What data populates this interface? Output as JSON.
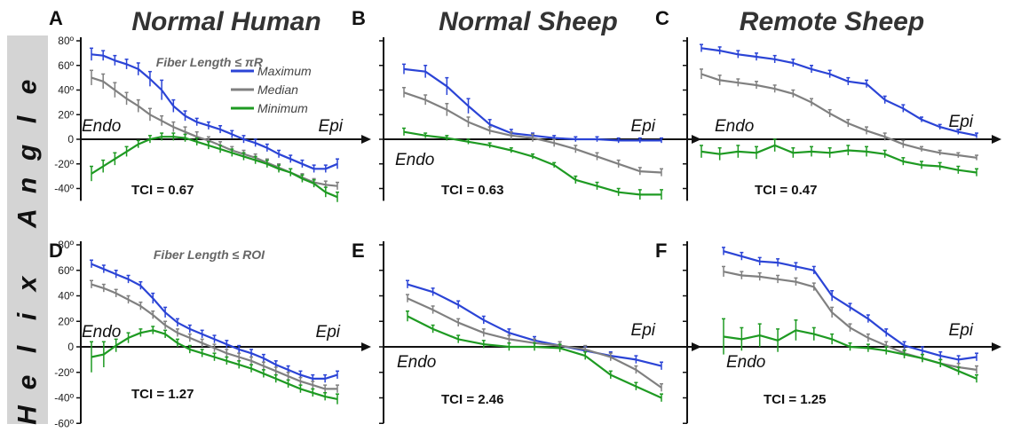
{
  "figure": {
    "column_titles": [
      "Normal Human",
      "Normal Sheep",
      "Remote Sheep"
    ],
    "side_label_letters": [
      "H",
      "e",
      "l",
      "i",
      "x",
      " ",
      "A",
      "n",
      "g",
      "l",
      "e"
    ],
    "fiber_notes": [
      "Fiber Length ≤ πR",
      "Fiber Length ≤ ROI"
    ],
    "endo_label": "Endo",
    "epi_label": "Epi",
    "y_ticks_top": [
      "80º",
      "60º",
      "40º",
      "20º",
      "0",
      "-20º",
      "-40º"
    ],
    "y_ticks_bottom": [
      "80º",
      "60º",
      "40º",
      "20º",
      "0",
      "-20º",
      "-40º",
      "-60º"
    ],
    "legend": [
      {
        "name": "Maximum",
        "color": "#2b44d6"
      },
      {
        "name": "Median",
        "color": "#808080"
      },
      {
        "name": "Minimum",
        "color": "#1e9a22"
      }
    ]
  },
  "chart_data": [
    {
      "type": "line",
      "panel": "A",
      "column": "Normal Human",
      "row": "top",
      "tci": "TCI = 0.67",
      "ylim": [
        -50,
        80
      ],
      "endo_position": "above",
      "show_note": 0,
      "show_legend": true,
      "series": [
        {
          "name": "Maximum",
          "color": "#2b44d6",
          "values": [
            69,
            68,
            64,
            61,
            57,
            49,
            40,
            27,
            19,
            14,
            11,
            8,
            4,
            0,
            -3,
            -7,
            -12,
            -16,
            -20,
            -24,
            -24,
            -20
          ],
          "err": [
            5,
            4,
            4,
            4,
            5,
            6,
            8,
            5,
            4,
            3,
            3,
            3,
            3,
            3,
            3,
            3,
            3,
            3,
            3,
            3,
            3,
            4
          ]
        },
        {
          "name": "Median",
          "color": "#808080",
          "values": [
            50,
            47,
            40,
            33,
            27,
            20,
            15,
            10,
            6,
            2,
            -1,
            -5,
            -9,
            -12,
            -15,
            -19,
            -23,
            -27,
            -31,
            -35,
            -37,
            -38
          ],
          "err": [
            6,
            6,
            6,
            5,
            5,
            5,
            4,
            4,
            4,
            4,
            3,
            3,
            3,
            3,
            3,
            3,
            3,
            3,
            3,
            3,
            3,
            3
          ]
        },
        {
          "name": "Minimum",
          "color": "#1e9a22",
          "values": [
            -28,
            -22,
            -16,
            -10,
            -4,
            0,
            2,
            2,
            1,
            -2,
            -5,
            -8,
            -11,
            -14,
            -17,
            -20,
            -24,
            -27,
            -32,
            -36,
            -43,
            -47
          ],
          "err": [
            6,
            5,
            5,
            4,
            3,
            3,
            3,
            3,
            3,
            3,
            3,
            3,
            3,
            3,
            3,
            3,
            3,
            3,
            3,
            3,
            4,
            4
          ]
        }
      ]
    },
    {
      "type": "line",
      "panel": "B",
      "column": "Normal Sheep",
      "row": "top",
      "tci": "TCI = 0.63",
      "ylim": [
        -50,
        80
      ],
      "endo_position": "below",
      "show_note": -1,
      "show_legend": false,
      "series": [
        {
          "name": "Maximum",
          "color": "#2b44d6",
          "values": [
            57,
            55,
            43,
            27,
            12,
            5,
            3,
            1,
            0,
            0,
            -1,
            -1,
            -1
          ],
          "err": [
            4,
            5,
            7,
            6,
            4,
            3,
            2,
            2,
            2,
            2,
            2,
            2,
            2
          ]
        },
        {
          "name": "Median",
          "color": "#808080",
          "values": [
            38,
            32,
            24,
            14,
            7,
            3,
            1,
            -3,
            -8,
            -14,
            -20,
            -26,
            -27
          ],
          "err": [
            4,
            4,
            5,
            4,
            3,
            3,
            3,
            3,
            3,
            3,
            3,
            3,
            3
          ]
        },
        {
          "name": "Minimum",
          "color": "#1e9a22",
          "values": [
            6,
            3,
            1,
            -2,
            -5,
            -9,
            -14,
            -21,
            -33,
            -38,
            -43,
            -45,
            -45
          ],
          "err": [
            3,
            2,
            2,
            2,
            2,
            2,
            2,
            2,
            3,
            3,
            3,
            4,
            4
          ]
        }
      ]
    },
    {
      "type": "line",
      "panel": "C",
      "column": "Remote Sheep",
      "row": "top",
      "tci": "TCI = 0.47",
      "ylim": [
        -50,
        80
      ],
      "endo_position": "above",
      "show_note": -1,
      "show_legend": false,
      "series": [
        {
          "name": "Maximum",
          "color": "#2b44d6",
          "values": [
            74,
            72,
            69,
            67,
            65,
            62,
            57,
            53,
            47,
            45,
            32,
            25,
            16,
            10,
            6,
            3
          ],
          "err": [
            3,
            3,
            3,
            3,
            3,
            3,
            3,
            3,
            3,
            3,
            3,
            3,
            2,
            2,
            2,
            2
          ]
        },
        {
          "name": "Median",
          "color": "#808080",
          "values": [
            53,
            48,
            46,
            44,
            41,
            37,
            30,
            21,
            13,
            7,
            2,
            -4,
            -8,
            -11,
            -13,
            -15
          ],
          "err": [
            4,
            4,
            3,
            3,
            3,
            3,
            3,
            3,
            3,
            3,
            3,
            3,
            2,
            2,
            2,
            2
          ]
        },
        {
          "name": "Minimum",
          "color": "#1e9a22",
          "values": [
            -10,
            -12,
            -10,
            -11,
            -5,
            -11,
            -10,
            -11,
            -9,
            -10,
            -12,
            -18,
            -21,
            -22,
            -25,
            -27
          ],
          "err": [
            5,
            5,
            5,
            5,
            5,
            4,
            4,
            4,
            4,
            4,
            3,
            3,
            3,
            3,
            3,
            3
          ]
        }
      ]
    },
    {
      "type": "line",
      "panel": "D",
      "column": "Normal Human",
      "row": "bottom",
      "tci": "TCI = 1.27",
      "ylim": [
        -60,
        80
      ],
      "endo_position": "above",
      "show_note": 1,
      "show_legend": false,
      "series": [
        {
          "name": "Maximum",
          "color": "#2b44d6",
          "values": [
            65,
            61,
            57,
            53,
            48,
            38,
            27,
            19,
            14,
            10,
            6,
            2,
            -2,
            -5,
            -9,
            -14,
            -18,
            -22,
            -25,
            -25,
            -22
          ],
          "err": [
            3,
            3,
            3,
            3,
            3,
            4,
            4,
            3,
            3,
            3,
            3,
            3,
            3,
            3,
            3,
            3,
            3,
            3,
            3,
            3,
            3
          ]
        },
        {
          "name": "Median",
          "color": "#808080",
          "values": [
            49,
            46,
            42,
            37,
            32,
            25,
            17,
            11,
            7,
            3,
            -1,
            -5,
            -8,
            -11,
            -15,
            -19,
            -23,
            -27,
            -30,
            -33,
            -33
          ],
          "err": [
            3,
            3,
            3,
            3,
            3,
            3,
            3,
            3,
            3,
            3,
            3,
            3,
            3,
            3,
            3,
            3,
            3,
            3,
            3,
            3,
            3
          ]
        },
        {
          "name": "Minimum",
          "color": "#1e9a22",
          "values": [
            -8,
            -6,
            1,
            7,
            11,
            13,
            10,
            3,
            -2,
            -5,
            -8,
            -11,
            -14,
            -17,
            -21,
            -25,
            -29,
            -33,
            -36,
            -39,
            -41
          ],
          "err": [
            12,
            10,
            5,
            4,
            3,
            3,
            3,
            3,
            3,
            3,
            3,
            3,
            3,
            3,
            3,
            3,
            3,
            3,
            3,
            3,
            4
          ]
        }
      ]
    },
    {
      "type": "line",
      "panel": "E",
      "column": "Normal Sheep",
      "row": "bottom",
      "tci": "TCI = 2.46",
      "ylim": [
        -60,
        80
      ],
      "endo_position": "below",
      "show_note": -1,
      "show_legend": false,
      "series": [
        {
          "name": "Maximum",
          "color": "#2b44d6",
          "values": [
            49,
            43,
            33,
            21,
            11,
            5,
            1,
            -3,
            -7,
            -10,
            -15
          ],
          "err": [
            3,
            3,
            3,
            3,
            3,
            3,
            3,
            3,
            3,
            3,
            3
          ]
        },
        {
          "name": "Median",
          "color": "#808080",
          "values": [
            38,
            29,
            19,
            11,
            6,
            3,
            1,
            -2,
            -8,
            -18,
            -32
          ],
          "err": [
            3,
            3,
            3,
            3,
            3,
            3,
            3,
            3,
            3,
            3,
            3
          ]
        },
        {
          "name": "Minimum",
          "color": "#1e9a22",
          "values": [
            24,
            14,
            6,
            2,
            0,
            0,
            -1,
            -7,
            -22,
            -31,
            -40
          ],
          "err": [
            4,
            3,
            3,
            3,
            3,
            3,
            3,
            3,
            3,
            3,
            3
          ]
        }
      ]
    },
    {
      "type": "line",
      "panel": "F",
      "column": "Remote Sheep",
      "row": "bottom",
      "tci": "TCI = 1.25",
      "ylim": [
        -60,
        80
      ],
      "endo_position": "below",
      "show_note": -1,
      "show_legend": false,
      "series": [
        {
          "name": "Maximum",
          "color": "#2b44d6",
          "values": [
            75,
            71,
            67,
            66,
            63,
            60,
            40,
            31,
            22,
            11,
            1,
            -3,
            -7,
            -10,
            -8
          ],
          "err": [
            3,
            3,
            3,
            3,
            3,
            3,
            4,
            3,
            3,
            3,
            3,
            3,
            3,
            3,
            3
          ]
        },
        {
          "name": "Median",
          "color": "#808080",
          "values": [
            59,
            56,
            55,
            53,
            51,
            47,
            27,
            15,
            7,
            1,
            -5,
            -9,
            -13,
            -16,
            -18
          ],
          "err": [
            4,
            3,
            3,
            3,
            3,
            3,
            4,
            3,
            3,
            3,
            3,
            3,
            3,
            3,
            3
          ]
        },
        {
          "name": "Minimum",
          "color": "#1e9a22",
          "values": [
            8,
            6,
            9,
            5,
            13,
            10,
            6,
            0,
            -1,
            -3,
            -6,
            -9,
            -13,
            -19,
            -25
          ],
          "err": [
            14,
            9,
            9,
            9,
            8,
            5,
            4,
            3,
            3,
            3,
            3,
            3,
            3,
            3,
            3
          ]
        }
      ]
    }
  ]
}
